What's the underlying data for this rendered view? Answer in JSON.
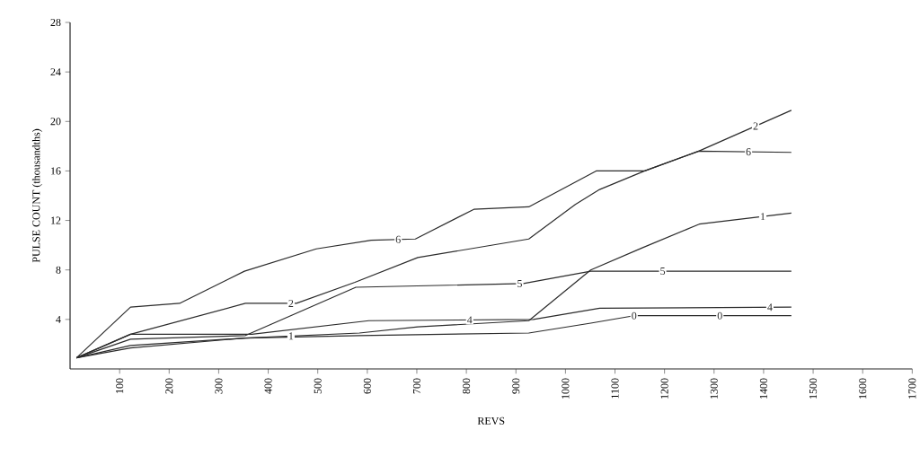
{
  "chart_data": {
    "type": "line",
    "xlabel": "REVS",
    "ylabel": "PULSE COUNT (thousandths)",
    "xlim": [
      0,
      1700
    ],
    "ylim": [
      0,
      28
    ],
    "xticks": [
      100,
      200,
      300,
      400,
      500,
      600,
      700,
      800,
      900,
      1000,
      1100,
      1200,
      1300,
      1400,
      1500,
      1600,
      1700
    ],
    "yticks": [
      4,
      8,
      12,
      16,
      20,
      24,
      28
    ],
    "grid": false,
    "marker": "none",
    "line_style": "solid",
    "series": [
      {
        "name": "0",
        "color": "#2b2b2b",
        "x": [
          13,
          122,
          354,
          584,
          926,
          1051,
          1138,
          1456
        ],
        "values": [
          0.9,
          1.7,
          2.5,
          2.7,
          2.9,
          3.7,
          4.3,
          4.3
        ]
      },
      {
        "name": "1",
        "color": "#2b2b2b",
        "x": [
          13,
          122,
          354,
          584,
          702,
          926,
          1051,
          1156,
          1270,
          1456
        ],
        "values": [
          0.9,
          1.9,
          2.5,
          2.9,
          3.4,
          3.9,
          8.0,
          9.8,
          11.7,
          12.6
        ]
      },
      {
        "name": "2",
        "color": "#2b2b2b",
        "x": [
          13,
          122,
          354,
          457,
          575,
          702,
          926,
          1020,
          1069,
          1160,
          1269,
          1456
        ],
        "values": [
          0.9,
          2.8,
          5.3,
          5.3,
          7.0,
          9.0,
          10.5,
          13.3,
          14.5,
          16.0,
          17.6,
          20.9
        ]
      },
      {
        "name": "4",
        "color": "#2b2b2b",
        "x": [
          13,
          122,
          367,
          603,
          935,
          1069,
          1456
        ],
        "values": [
          0.9,
          2.8,
          2.8,
          3.9,
          4.0,
          4.9,
          5.0
        ]
      },
      {
        "name": "5",
        "color": "#2b2b2b",
        "x": [
          13,
          122,
          354,
          577,
          915,
          1051,
          1456
        ],
        "values": [
          0.9,
          2.4,
          2.7,
          6.6,
          6.9,
          7.9,
          7.9
        ]
      },
      {
        "name": "6",
        "color": "#2b2b2b",
        "x": [
          13,
          122,
          221,
          352,
          497,
          608,
          697,
          815,
          926,
          1062,
          1160,
          1269,
          1456
        ],
        "values": [
          0.9,
          5.0,
          5.3,
          7.9,
          9.7,
          10.4,
          10.5,
          12.9,
          13.1,
          16.0,
          16.0,
          17.6,
          17.5
        ]
      }
    ]
  }
}
